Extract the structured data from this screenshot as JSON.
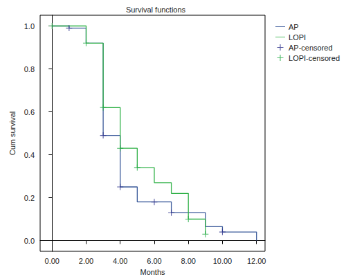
{
  "chart_data": {
    "type": "line",
    "title": "Survival functions",
    "x_label": "Months",
    "y_label": "Cum survival",
    "xlim": [
      -0.7,
      12.5
    ],
    "xticks": [
      {
        "value": 0,
        "label": "0.00"
      },
      {
        "value": 2,
        "label": "2.00"
      },
      {
        "value": 4,
        "label": "4.00"
      },
      {
        "value": 6,
        "label": "6.00"
      },
      {
        "value": 8,
        "label": "8.00"
      },
      {
        "value": 10,
        "label": "10.00"
      },
      {
        "value": 12,
        "label": "12.00"
      }
    ],
    "ylim": [
      -0.05,
      1.05
    ],
    "yticks": [
      {
        "value": 0,
        "label": "0.0"
      },
      {
        "value": 0.2,
        "label": "0.2"
      },
      {
        "value": 0.4,
        "label": "0.4"
      },
      {
        "value": 0.6,
        "label": "0.6"
      },
      {
        "value": 0.8,
        "label": "0.8"
      },
      {
        "value": 1,
        "label": "1.0"
      }
    ],
    "grid": false,
    "legend": "top-right",
    "series": [
      {
        "name": "AP",
        "type": "line",
        "line_style": "step",
        "color": "#3b5a9a",
        "x": [
          0,
          1,
          2,
          3,
          4,
          5,
          7,
          9,
          10,
          12
        ],
        "values": [
          1.0,
          0.99,
          0.92,
          0.49,
          0.25,
          0.18,
          0.13,
          0.065,
          0.04,
          0.0
        ]
      },
      {
        "name": "LOPI",
        "type": "line",
        "line_style": "step",
        "color": "#33b24a",
        "x": [
          0,
          2,
          3,
          4,
          5,
          6,
          7,
          8,
          9
        ],
        "values": [
          1.0,
          0.92,
          0.62,
          0.43,
          0.34,
          0.27,
          0.22,
          0.1,
          0.03
        ]
      },
      {
        "name": "AP-censored",
        "type": "scatter",
        "marker": "plus",
        "color": "#2b2f8a",
        "x": [
          1,
          3,
          4,
          6,
          7,
          10
        ],
        "values": [
          0.99,
          0.49,
          0.25,
          0.18,
          0.13,
          0.04
        ]
      },
      {
        "name": "LOPI-censored",
        "type": "scatter",
        "marker": "plus",
        "color": "#22aa44",
        "x": [
          0,
          2,
          3,
          4,
          5,
          8,
          9
        ],
        "values": [
          1.0,
          0.92,
          0.62,
          0.43,
          0.34,
          0.1,
          0.03
        ]
      }
    ]
  }
}
